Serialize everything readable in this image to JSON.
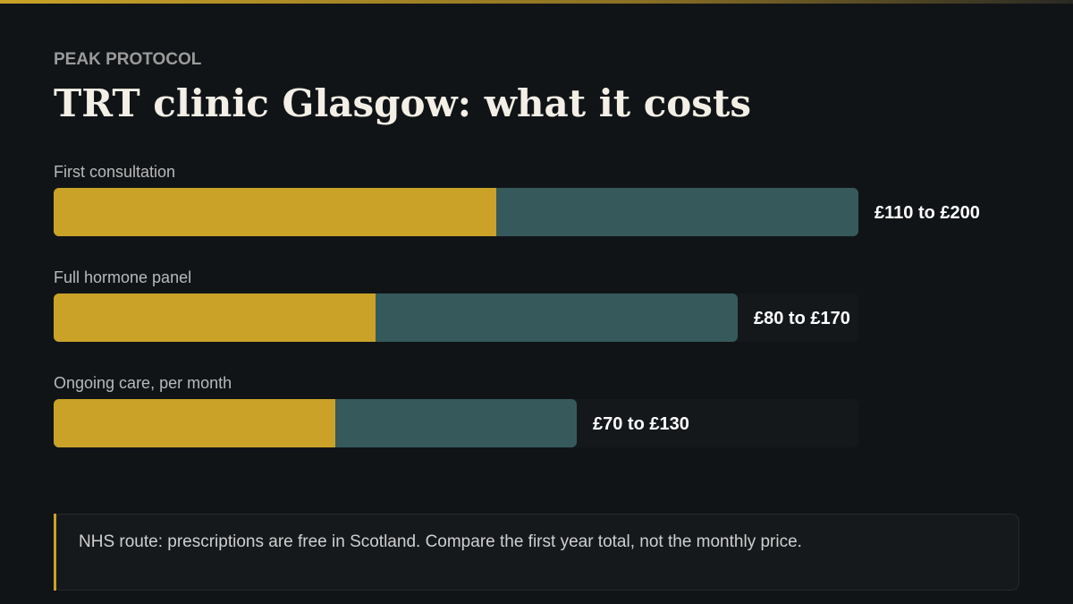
{
  "chart_data": {
    "type": "range-bar",
    "kicker": "PEAK PROTOCOL",
    "title": "TRT clinic Glasgow: what it costs",
    "categories": [
      "First consultation",
      "Full hormone panel",
      "Ongoing care, per month"
    ],
    "low": [
      110,
      80,
      70
    ],
    "high": [
      200,
      170,
      130
    ],
    "value_labels": [
      "£110 to £200",
      "£80 to £170",
      "£70 to £130"
    ],
    "xlim": [
      0,
      200
    ],
    "low_color": "#c9a227",
    "high_color": "#365a5c",
    "note": "NHS route: prescriptions are free in Scotland. Compare the first year total, not the monthly price."
  }
}
